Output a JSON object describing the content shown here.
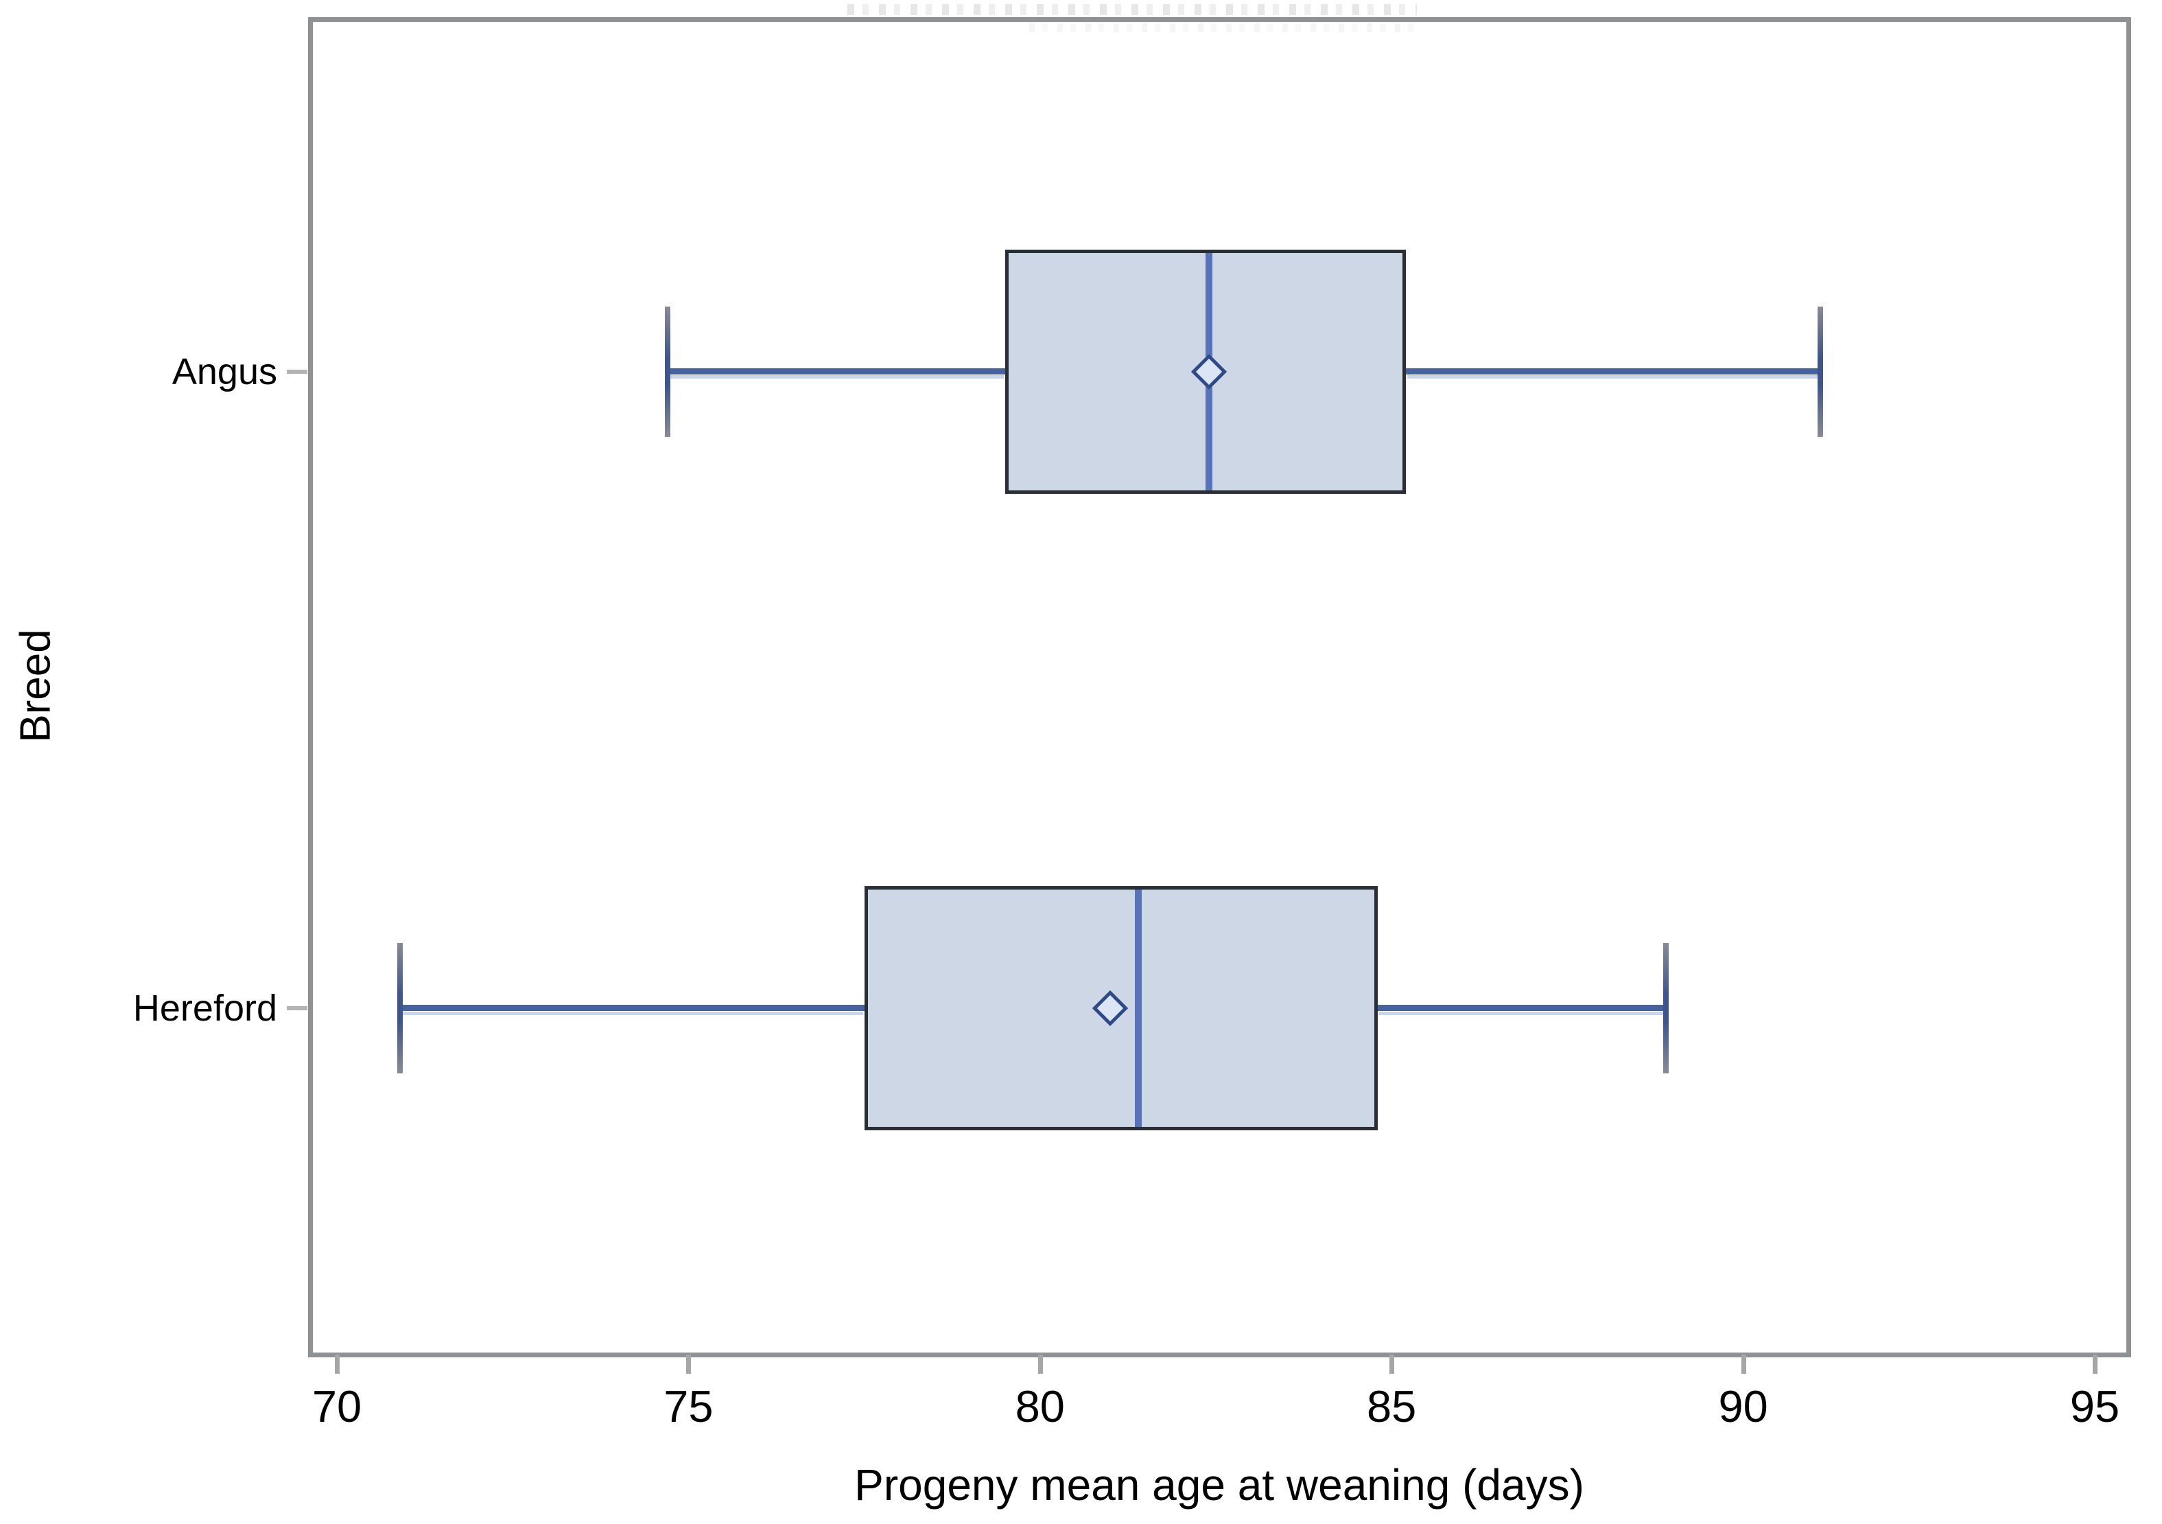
{
  "chart_data": {
    "type": "boxplot",
    "orientation": "horizontal",
    "xlabel": "Progeny mean age at weaning (days)",
    "ylabel": "Breed",
    "categories": [
      "Angus",
      "Hereford"
    ],
    "x_ticks": [
      70,
      75,
      80,
      85,
      90,
      95
    ],
    "xlim": [
      69.6,
      95.5
    ],
    "grid": false,
    "legend": false,
    "clipped_title_remnant": true,
    "series": [
      {
        "name": "Angus",
        "min": 74.7,
        "q1": 79.5,
        "median": 82.4,
        "mean": 82.4,
        "q3": 85.2,
        "max": 91.1
      },
      {
        "name": "Hereford",
        "min": 70.9,
        "q1": 77.5,
        "median": 81.4,
        "mean": 81.0,
        "q3": 84.8,
        "max": 88.9
      }
    ],
    "colors": {
      "box_fill": "#cdd7e6",
      "box_border": "#2a2f36",
      "median": "#5873b9",
      "whisker": "#45619e",
      "cap_mid": "#3e548e",
      "cap_end": "#868b95",
      "mean_outline": "#2e4a86",
      "mean_fill": "#dbe5f4",
      "frame": "#8f9295",
      "tick": "#a6a6a6",
      "text": "#000000"
    }
  }
}
